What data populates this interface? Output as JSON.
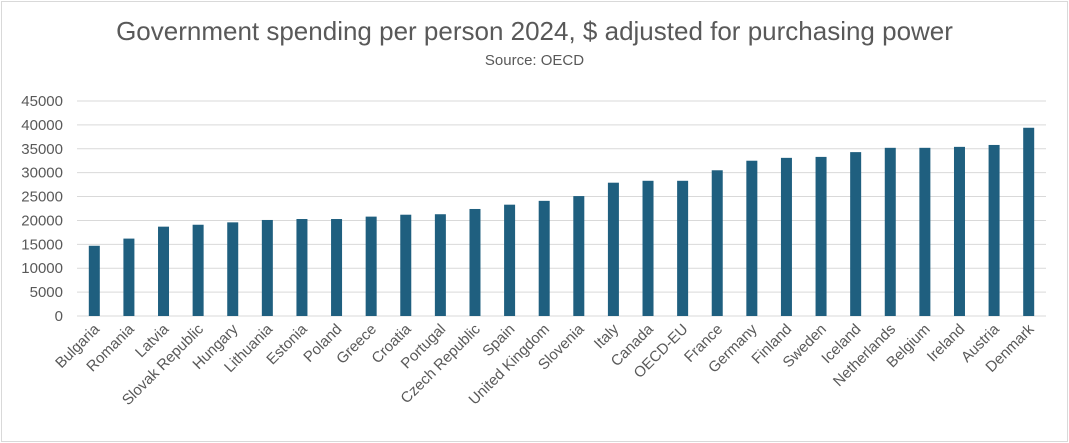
{
  "chart_data": {
    "type": "bar",
    "title": "Government spending per person 2024, $ adjusted for purchasing power",
    "subtitle": "Source: OECD",
    "xlabel": "",
    "ylabel": "",
    "ylim": [
      0,
      45000
    ],
    "yticks": [
      0,
      5000,
      10000,
      15000,
      20000,
      25000,
      30000,
      35000,
      40000,
      45000
    ],
    "grid": true,
    "bar_color": "#1f5f7f",
    "categories": [
      "Bulgaria",
      "Romania",
      "Latvia",
      "Slovak Republic",
      "Hungary",
      "Lithuania",
      "Estonia",
      "Poland",
      "Greece",
      "Croatia",
      "Portugal",
      "Czech Republic",
      "Spain",
      "United Kingdom",
      "Slovenia",
      "Italy",
      "Canada",
      "OECD-EU",
      "France",
      "Germany",
      "Finland",
      "Sweden",
      "Iceland",
      "Netherlands",
      "Belgium",
      "Ireland",
      "Austria",
      "Denmark"
    ],
    "values": [
      14700,
      16200,
      18700,
      19100,
      19600,
      20100,
      20300,
      20300,
      20800,
      21200,
      21300,
      22400,
      23300,
      24100,
      25100,
      27900,
      28300,
      28300,
      30500,
      32500,
      33100,
      33300,
      34300,
      35200,
      35200,
      35400,
      35800,
      39400
    ]
  }
}
